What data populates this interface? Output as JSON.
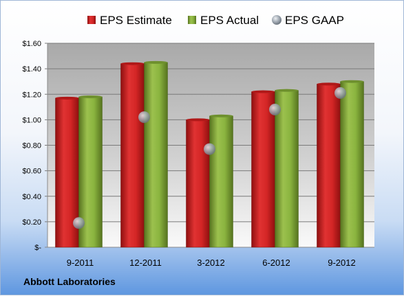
{
  "company": "Abbott Laboratories",
  "colors": {
    "estimate": "#cc1f1f",
    "actual": "#7fa33a",
    "gaap": "#9aa3ad"
  },
  "chart_data": {
    "type": "bar",
    "categories": [
      "9-2011",
      "12-2011",
      "3-2012",
      "6-2012",
      "9-2012"
    ],
    "series": [
      {
        "name": "EPS Estimate",
        "kind": "bar",
        "values": [
          1.17,
          1.44,
          1.0,
          1.22,
          1.28
        ]
      },
      {
        "name": "EPS Actual",
        "kind": "bar",
        "values": [
          1.18,
          1.45,
          1.03,
          1.23,
          1.3
        ]
      },
      {
        "name": "EPS GAAP",
        "kind": "point",
        "values": [
          0.19,
          1.02,
          0.77,
          1.08,
          1.21
        ]
      }
    ],
    "ylim": [
      0,
      1.6
    ],
    "yticks": [
      {
        "value": 0,
        "label": "$-"
      },
      {
        "value": 0.2,
        "label": "$0.20"
      },
      {
        "value": 0.4,
        "label": "$0.40"
      },
      {
        "value": 0.6,
        "label": "$0.60"
      },
      {
        "value": 0.8,
        "label": "$0.80"
      },
      {
        "value": 1.0,
        "label": "$1.00"
      },
      {
        "value": 1.2,
        "label": "$1.20"
      },
      {
        "value": 1.4,
        "label": "$1.40"
      },
      {
        "value": 1.6,
        "label": "$1.60"
      }
    ],
    "grid": true,
    "legend_position": "top"
  }
}
